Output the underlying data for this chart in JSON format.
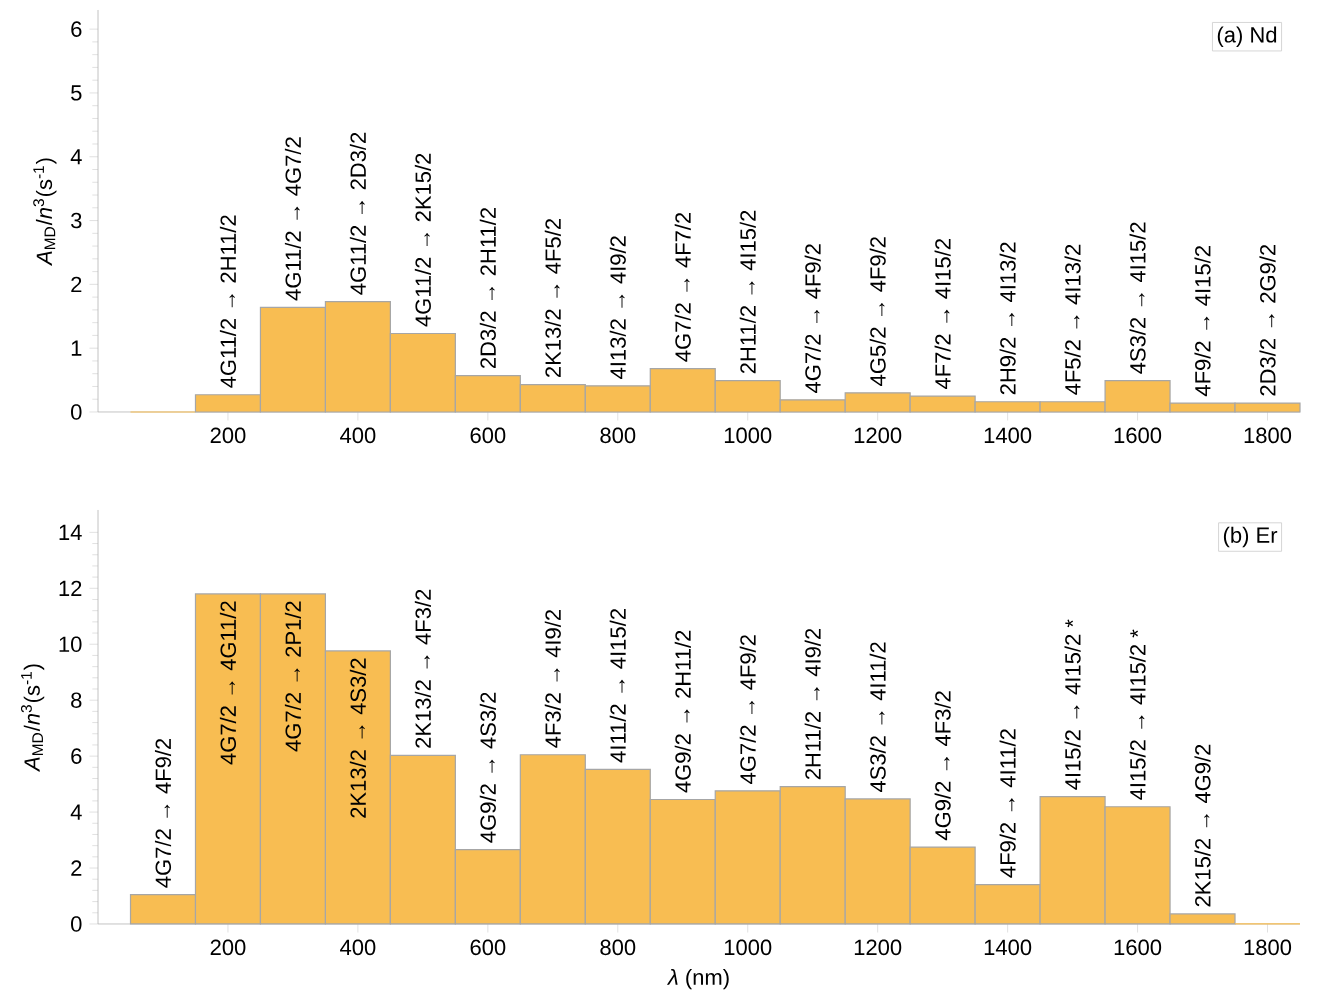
{
  "chart_data": [
    {
      "type": "histogram",
      "ylabel": "*A*$_{MD}$/*n*$^{3}$(s$^{-1}$)",
      "color": "#f8bd52",
      "bins": [
        50,
        150,
        250,
        350,
        450,
        550,
        650,
        750,
        850,
        950,
        1050,
        1150,
        1250,
        1350,
        1450,
        1550,
        1650,
        1750,
        1850
      ],
      "values": [
        0,
        0.27,
        1.64,
        1.73,
        1.23,
        0.57,
        0.43,
        0.41,
        0.68,
        0.49,
        0.19,
        0.3,
        0.25,
        0.16,
        0.16,
        0.49,
        0.14,
        0.14
      ],
      "xlim": [
        0,
        1850
      ],
      "xticks": [
        200,
        400,
        600,
        800,
        1000,
        1200,
        1400,
        1600,
        1800
      ],
      "ylim": [
        0,
        6.3
      ],
      "yticks": [
        0,
        1,
        2,
        3,
        4,
        5,
        6
      ],
      "annotations": [
        "(a) Nd",
        {
          "text": "4G11/2 → 2H11/2",
          "x": 200,
          "y": 0.27
        },
        {
          "text": "4G11/2 → 4G7/2",
          "x": 300,
          "y": 1.64
        },
        {
          "text": "4G11/2 → 2D3/2",
          "x": 400,
          "y": 1.73
        },
        {
          "text": "4G11/2 → 2K15/2",
          "x": 500,
          "y": 1.23
        },
        {
          "text": "2D3/2 → 2H11/2",
          "x": 600,
          "y": 0.57
        },
        {
          "text": "2K13/2 → 4F5/2",
          "x": 700,
          "y": 0.43
        },
        {
          "text": "4I13/2 → 4I9/2",
          "x": 800,
          "y": 0.41
        },
        {
          "text": "4G7/2 → 4F7/2",
          "x": 900,
          "y": 0.68
        },
        {
          "text": "2H11/2 → 4I15/2",
          "x": 1000,
          "y": 0.49
        },
        {
          "text": "4G7/2 → 4F9/2",
          "x": 1100,
          "y": 0.19
        },
        {
          "text": "4G5/2 → 4F9/2",
          "x": 1200,
          "y": 0.3
        },
        {
          "text": "4F7/2 → 4I15/2",
          "x": 1300,
          "y": 0.25
        },
        {
          "text": "2H9/2 → 4I13/2",
          "x": 1400,
          "y": 0.16
        },
        {
          "text": "4F5/2 → 4I13/2",
          "x": 1500,
          "y": 0.16
        },
        {
          "text": "4S3/2 → 4I15/2",
          "x": 1600,
          "y": 0.49
        },
        {
          "text": "4F9/2 → 4I15/2",
          "x": 1700,
          "y": 0.14
        },
        {
          "text": "2D3/2 → 2G9/2",
          "x": 1800,
          "y": 0.14
        }
      ]
    },
    {
      "type": "histogram",
      "ylabel": "*A*$_{MD}$/*n*$^{3}$(s$^{-1}$)",
      "xlabel": "*λ* (nm)",
      "color": "#f8bd52",
      "bins": [
        50,
        150,
        250,
        350,
        450,
        550,
        650,
        750,
        850,
        950,
        1050,
        1150,
        1250,
        1350,
        1450,
        1550,
        1650,
        1750,
        1850
      ],
      "values": [
        1.05,
        11.8,
        11.8,
        9.76,
        6.03,
        2.66,
        6.05,
        5.53,
        4.45,
        4.76,
        4.91,
        4.47,
        2.75,
        1.41,
        4.55,
        4.19,
        0.36,
        0
      ],
      "xlim": [
        0,
        1850
      ],
      "xticks": [
        200,
        400,
        600,
        800,
        1000,
        1200,
        1400,
        1600,
        1800
      ],
      "ylim": [
        0,
        14.8
      ],
      "yticks": [
        0,
        2,
        4,
        6,
        8,
        10,
        12,
        14
      ],
      "annotations": [
        "(b) Er",
        {
          "text": "4G7/2 → 4F9/2",
          "x": 100,
          "y": 1.05
        },
        {
          "text": "4G7/2 → 4G11/2",
          "x": 200,
          "y": 11.8
        },
        {
          "text": "4G7/2 → 2P1/2",
          "x": 300,
          "y": 11.8
        },
        {
          "text": "2K13/2 → 4S3/2",
          "x": 400,
          "y": 9.76
        },
        {
          "text": "2K13/2 → 4F3/2",
          "x": 500,
          "y": 6.03
        },
        {
          "text": "4G9/2 → 4S3/2",
          "x": 600,
          "y": 2.66
        },
        {
          "text": "4F3/2 → 4I9/2",
          "x": 700,
          "y": 6.05
        },
        {
          "text": "4I11/2 → 4I15/2",
          "x": 800,
          "y": 5.53
        },
        {
          "text": "4G9/2 → 2H11/2",
          "x": 900,
          "y": 4.45
        },
        {
          "text": "4G7/2 → 4F9/2",
          "x": 1000,
          "y": 4.76
        },
        {
          "text": "2H11/2 → 4I9/2",
          "x": 1100,
          "y": 4.91
        },
        {
          "text": "4S3/2 → 4I11/2",
          "x": 1200,
          "y": 4.47
        },
        {
          "text": "4G9/2 → 4F3/2",
          "x": 1300,
          "y": 2.75
        },
        {
          "text": "4F9/2 → 4I11/2",
          "x": 1400,
          "y": 1.41
        },
        {
          "text": "4I15/2 → 4I15/2 *",
          "x": 1500,
          "y": 4.55
        },
        {
          "text": "4I15/2 → 4I15/2 *",
          "x": 1600,
          "y": 4.19
        },
        {
          "text": "2K15/2 → 4G9/2",
          "x": 1700,
          "y": 0.36
        }
      ]
    }
  ]
}
